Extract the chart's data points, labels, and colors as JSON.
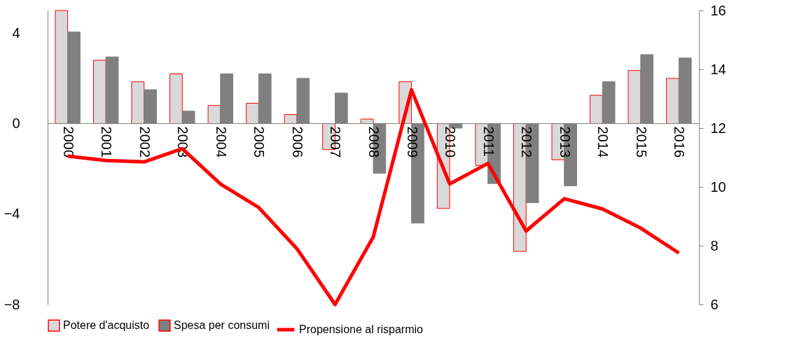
{
  "chart_data": {
    "type": "bar",
    "categories": [
      "2000",
      "2001",
      "2002",
      "2003",
      "2004",
      "2005",
      "2006",
      "2007",
      "2008",
      "2009",
      "2010",
      "2011",
      "2012",
      "2013",
      "2014",
      "2015",
      "2016"
    ],
    "series": [
      {
        "name": "Potere d'acquisto",
        "color": "#d9d9d9",
        "values": [
          5.0,
          2.8,
          1.85,
          2.2,
          0.8,
          0.9,
          0.4,
          -1.15,
          0.2,
          1.85,
          -3.75,
          -1.85,
          -5.65,
          -1.6,
          1.25,
          2.35,
          2.0
        ]
      },
      {
        "name": "Spesa per consumi",
        "color": "#808080",
        "values": [
          4.05,
          2.95,
          1.5,
          0.55,
          2.2,
          2.2,
          2.0,
          1.35,
          -2.2,
          -4.4,
          -0.2,
          -2.65,
          -3.5,
          -2.75,
          1.85,
          3.05,
          2.9
        ]
      },
      {
        "name": "Propensione al risparmio",
        "type": "line",
        "axis": "y2",
        "color": "#ff0000",
        "values": [
          11.05,
          10.9,
          10.85,
          11.3,
          10.1,
          9.3,
          7.9,
          6.0,
          8.3,
          13.3,
          10.1,
          10.8,
          8.5,
          9.6,
          9.25,
          8.6,
          7.75
        ]
      }
    ],
    "ylim": [
      -8,
      5
    ],
    "yticks": [
      -8,
      -4,
      0,
      4
    ],
    "y2lim": [
      6,
      16
    ],
    "y2ticks": [
      6,
      8,
      10,
      12,
      14,
      16
    ],
    "grid": false,
    "legend": "bottom",
    "marker": "none",
    "line_style": "solid"
  }
}
